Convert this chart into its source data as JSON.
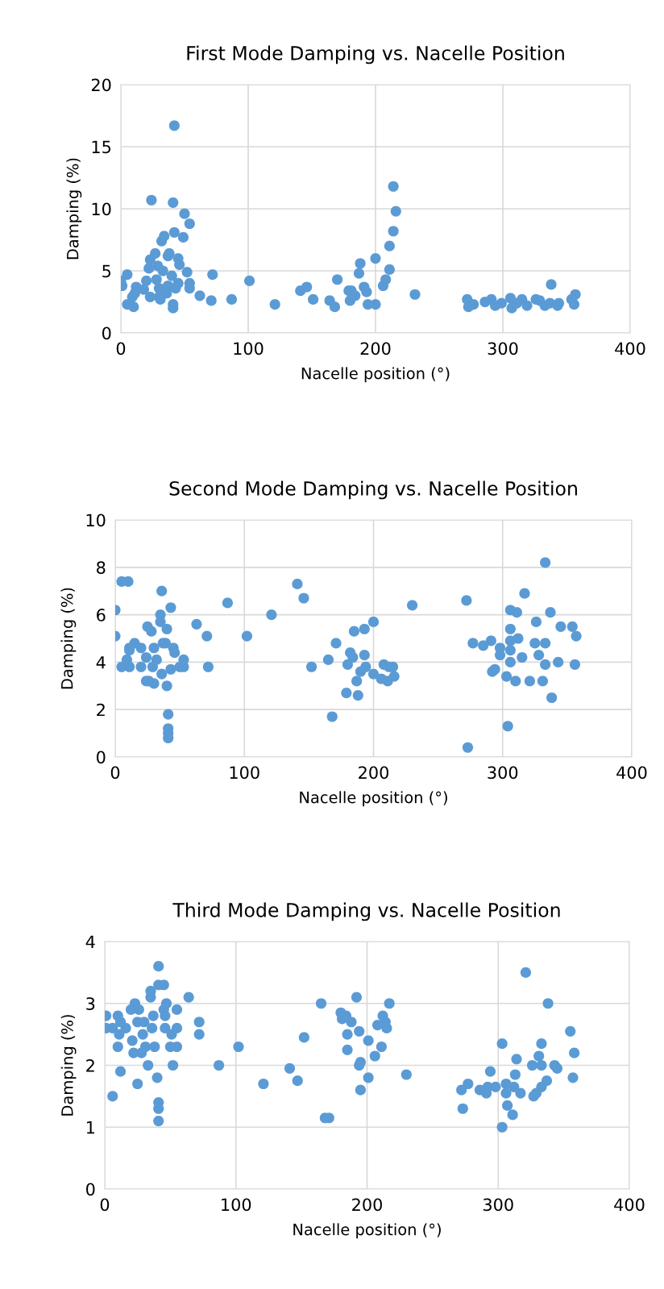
{
  "chart_data": [
    {
      "type": "scatter",
      "title": "First Mode Damping vs. Nacelle Position",
      "xlabel": "Nacelle position (°)",
      "ylabel": "Damping (%)",
      "xlim": [
        0,
        400
      ],
      "xticks": [
        0,
        100,
        200,
        300,
        400
      ],
      "ylim": [
        0,
        20
      ],
      "yticks": [
        0,
        5,
        10,
        15,
        20
      ],
      "grid": true,
      "marker": "circle",
      "series": [
        {
          "color": "#5b9bd5",
          "x": [
            0,
            1,
            5,
            5,
            10,
            9,
            12,
            11,
            20,
            22,
            23,
            24,
            27,
            23,
            29,
            30,
            31,
            32,
            34,
            37,
            38,
            36,
            37,
            40,
            41,
            42,
            42,
            41,
            41,
            43,
            45,
            46,
            45,
            49,
            50,
            52,
            54,
            54,
            54,
            62,
            71,
            72,
            87,
            101,
            121,
            141,
            146,
            151,
            164,
            168,
            170,
            179,
            181,
            180,
            184,
            187,
            188,
            191,
            193,
            194,
            200,
            200,
            206,
            208,
            211,
            211,
            214,
            214,
            216,
            231,
            272,
            273,
            277,
            286,
            291,
            294,
            299,
            306,
            307,
            311,
            315,
            319,
            326,
            329,
            333,
            338,
            337,
            343,
            344,
            354,
            357,
            356,
            18,
            28,
            33,
            30
          ],
          "values": [
            4.2,
            3.8,
            4.7,
            2.3,
            2.1,
            2.9,
            3.7,
            3.2,
            4.2,
            5.2,
            5.9,
            10.7,
            6.4,
            2.9,
            5.4,
            2.9,
            2.7,
            7.4,
            7.8,
            6.2,
            6.4,
            3.2,
            3.8,
            4.6,
            10.5,
            16.7,
            8.1,
            2.3,
            2.0,
            3.6,
            6.0,
            5.5,
            4.0,
            7.7,
            9.6,
            4.9,
            8.8,
            4.0,
            3.6,
            3.0,
            2.6,
            4.7,
            2.7,
            4.2,
            2.3,
            3.4,
            3.7,
            2.7,
            2.6,
            2.1,
            4.3,
            3.4,
            3.4,
            2.6,
            3.0,
            4.8,
            5.6,
            3.7,
            3.3,
            2.3,
            2.3,
            6.0,
            3.8,
            4.3,
            5.1,
            7.0,
            8.2,
            11.8,
            9.8,
            3.1,
            2.7,
            2.1,
            2.3,
            2.5,
            2.7,
            2.2,
            2.4,
            2.8,
            2.0,
            2.4,
            2.7,
            2.2,
            2.7,
            2.6,
            2.2,
            3.9,
            2.4,
            2.2,
            2.4,
            2.7,
            3.1,
            2.3,
            3.5,
            4.3,
            5.0,
            3.6
          ]
        }
      ]
    },
    {
      "type": "scatter",
      "title": "Second Mode Damping vs. Nacelle Position",
      "xlabel": "Nacelle position (°)",
      "ylabel": "Damping (%)",
      "xlim": [
        0,
        400
      ],
      "xticks": [
        0,
        100,
        200,
        300,
        400
      ],
      "ylim": [
        0,
        10
      ],
      "yticks": [
        0,
        2,
        4,
        6,
        8,
        10
      ],
      "grid": true,
      "marker": "circle",
      "series": [
        {
          "color": "#5b9bd5",
          "x": [
            0,
            0,
            5,
            10,
            5,
            9,
            11,
            11,
            11,
            15,
            20,
            20,
            24,
            25,
            28,
            24,
            26,
            29,
            30,
            30,
            32,
            35,
            35,
            36,
            36,
            37,
            40,
            39,
            40,
            41,
            41,
            41,
            41,
            43,
            43,
            45,
            46,
            50,
            53,
            53,
            63,
            71,
            72,
            87,
            102,
            121,
            141,
            146,
            152,
            165,
            168,
            171,
            179,
            180,
            182,
            184,
            185,
            188,
            187,
            190,
            193,
            193,
            194,
            200,
            200,
            206,
            208,
            211,
            212,
            215,
            216,
            230,
            272,
            273,
            277,
            285,
            291,
            292,
            294,
            298,
            298,
            303,
            304,
            306,
            306,
            306,
            306,
            306,
            310,
            311,
            312,
            315,
            317,
            321,
            326,
            325,
            328,
            331,
            333,
            333,
            333,
            337,
            338,
            343,
            345,
            354,
            356,
            357
          ],
          "values": [
            6.2,
            5.1,
            7.4,
            7.4,
            3.8,
            4.1,
            4.6,
            4.5,
            3.8,
            4.8,
            4.6,
            3.8,
            4.2,
            5.5,
            5.3,
            3.2,
            3.2,
            3.8,
            3.1,
            4.6,
            4.1,
            6.0,
            5.7,
            7.0,
            3.5,
            4.8,
            5.4,
            4.8,
            3.0,
            1.8,
            1.2,
            1.0,
            0.8,
            6.3,
            3.7,
            4.6,
            4.4,
            3.8,
            4.1,
            3.8,
            5.6,
            5.1,
            3.8,
            6.5,
            5.1,
            6.0,
            7.3,
            6.7,
            3.8,
            4.1,
            1.7,
            4.8,
            2.7,
            3.9,
            4.4,
            4.2,
            5.3,
            2.6,
            3.2,
            3.6,
            5.4,
            4.3,
            3.8,
            5.7,
            3.5,
            3.3,
            3.9,
            3.2,
            3.8,
            3.8,
            3.4,
            6.4,
            6.6,
            0.4,
            4.8,
            4.7,
            4.9,
            3.6,
            3.7,
            4.6,
            4.3,
            3.4,
            1.3,
            5.4,
            4.9,
            6.2,
            4.5,
            4.0,
            3.2,
            6.1,
            5.0,
            4.2,
            6.9,
            3.2,
            5.7,
            4.8,
            4.3,
            3.2,
            4.8,
            3.9,
            8.2,
            6.1,
            2.5,
            4.0,
            5.5,
            5.5,
            3.9,
            5.1
          ]
        }
      ]
    },
    {
      "type": "scatter",
      "title": "Third Mode Damping vs. Nacelle Position",
      "xlabel": "Nacelle position (°)",
      "ylabel": "Damping (%)",
      "xlim": [
        0,
        400
      ],
      "xticks": [
        0,
        100,
        200,
        300,
        400
      ],
      "ylim": [
        0,
        4
      ],
      "yticks": [
        0,
        1,
        2,
        3,
        4
      ],
      "grid": true,
      "marker": "circle",
      "series": [
        {
          "color": "#5b9bd5",
          "x": [
            1,
            1,
            6,
            6,
            10,
            10,
            11,
            12,
            12,
            16,
            20,
            21,
            22,
            23,
            25,
            25,
            26,
            28,
            29,
            30,
            31,
            33,
            35,
            35,
            36,
            37,
            38,
            40,
            41,
            41,
            41,
            41,
            41,
            45,
            45,
            46,
            46,
            47,
            50,
            51,
            52,
            55,
            55,
            55,
            64,
            72,
            72,
            87,
            102,
            121,
            141,
            147,
            152,
            165,
            168,
            171,
            180,
            184,
            181,
            188,
            185,
            185,
            192,
            194,
            195,
            194,
            195,
            201,
            201,
            206,
            208,
            211,
            212,
            214,
            215,
            217,
            230,
            272,
            273,
            277,
            286,
            291,
            294,
            292,
            298,
            303,
            303,
            306,
            306,
            307,
            311,
            312,
            313,
            314,
            317,
            321,
            326,
            327,
            329,
            331,
            333,
            333,
            333,
            337,
            338,
            343,
            345,
            355,
            357,
            358
          ],
          "values": [
            2.8,
            2.6,
            1.5,
            2.6,
            2.3,
            2.8,
            2.5,
            1.9,
            2.7,
            2.6,
            2.9,
            2.4,
            2.2,
            3.0,
            1.7,
            2.7,
            2.9,
            2.2,
            2.5,
            2.7,
            2.3,
            2.0,
            3.2,
            3.1,
            2.6,
            2.8,
            2.3,
            1.8,
            3.6,
            3.3,
            1.4,
            1.3,
            1.1,
            3.3,
            2.9,
            2.8,
            2.6,
            3.0,
            2.3,
            2.5,
            2.0,
            2.9,
            2.3,
            2.6,
            3.1,
            2.7,
            2.5,
            2.0,
            2.3,
            1.7,
            1.95,
            1.75,
            2.45,
            3.0,
            1.15,
            1.15,
            2.85,
            2.8,
            2.75,
            2.7,
            2.5,
            2.25,
            3.1,
            2.55,
            2.05,
            2.0,
            1.6,
            2.4,
            1.8,
            2.15,
            2.65,
            2.3,
            2.8,
            2.7,
            2.6,
            3.0,
            1.85,
            1.6,
            1.3,
            1.7,
            1.6,
            1.55,
            1.9,
            1.65,
            1.65,
            2.35,
            1.0,
            1.7,
            1.55,
            1.35,
            1.2,
            1.65,
            1.85,
            2.1,
            1.55,
            3.5,
            2.0,
            1.5,
            1.55,
            2.15,
            1.65,
            2.35,
            2.0,
            1.75,
            3.0,
            2.0,
            1.95,
            2.55,
            1.8,
            2.2
          ]
        }
      ]
    }
  ]
}
